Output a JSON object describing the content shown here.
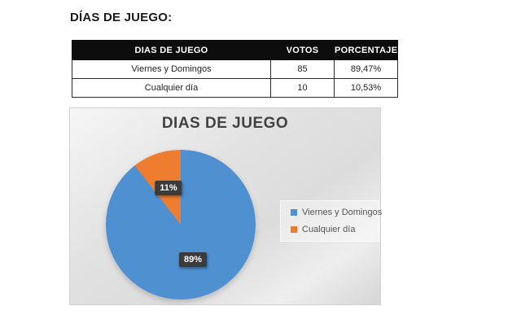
{
  "page": {
    "title": "DÍAS DE JUEGO:"
  },
  "table": {
    "headers": [
      "DIAS DE JUEGO",
      "VOTOS",
      "PORCENTAJE"
    ],
    "rows": [
      {
        "label": "Viernes y Domingos",
        "votos": "85",
        "porcentaje": "89,47%"
      },
      {
        "label": "Cualquier día",
        "votos": "10",
        "porcentaje": "10,53%"
      }
    ]
  },
  "chart_data": {
    "type": "pie",
    "title": "DIAS DE JUEGO",
    "labels": [
      "Viernes y Domingos",
      "Cualquier día"
    ],
    "values": [
      85,
      10
    ],
    "percent_labels": [
      "89%",
      "11%"
    ],
    "colors": [
      "#4f90d1",
      "#ee7d2f"
    ],
    "label_box_color": "#3b3b3b",
    "legend_position": "right",
    "start_angle_deg": 0,
    "direction": "clockwise"
  }
}
